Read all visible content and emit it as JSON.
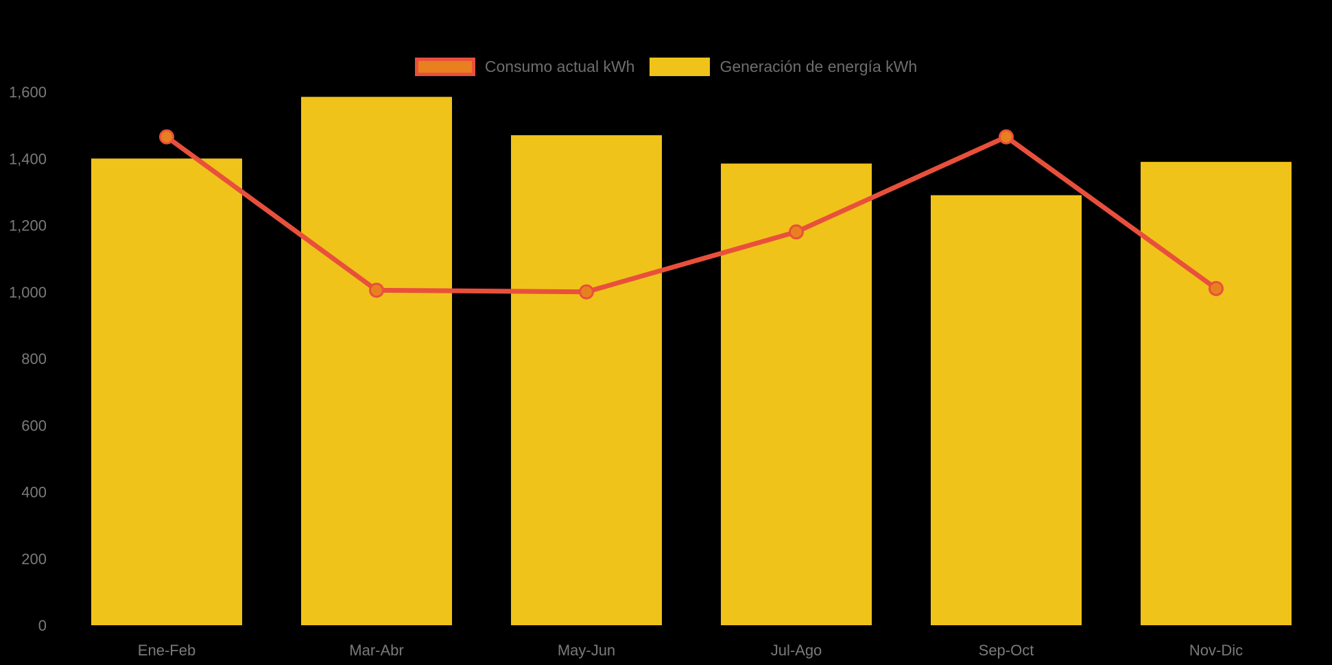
{
  "chart_data": {
    "type": "combo-bar-line",
    "title": "",
    "xlabel": "",
    "ylabel": "",
    "categories": [
      "Ene-Feb",
      "Mar-Abr",
      "May-Jun",
      "Jul-Ago",
      "Sep-Oct",
      "Nov-Dic"
    ],
    "series": [
      {
        "name": "Consumo actual kWh",
        "type": "line",
        "color": "#E8503C",
        "point_fill": "#E8801F",
        "point_stroke": "#E8503C",
        "values": [
          1465,
          1005,
          1000,
          1180,
          1465,
          1010
        ]
      },
      {
        "name": "Generación de energía kWh",
        "type": "bar",
        "color": "#F0C31A",
        "values": [
          1400,
          1585,
          1470,
          1385,
          1290,
          1390
        ]
      }
    ],
    "ylim": [
      0,
      1600
    ],
    "ytick_step": 200,
    "ytick_labels": [
      "0",
      "200",
      "400",
      "600",
      "800",
      "1,000",
      "1,200",
      "1,400",
      "1,600"
    ],
    "legend_position": "top-center",
    "grid": false,
    "background_color": "#000000",
    "axis_text_color": "#7A7A7A",
    "legend_text_color": "#6E6E6E"
  }
}
